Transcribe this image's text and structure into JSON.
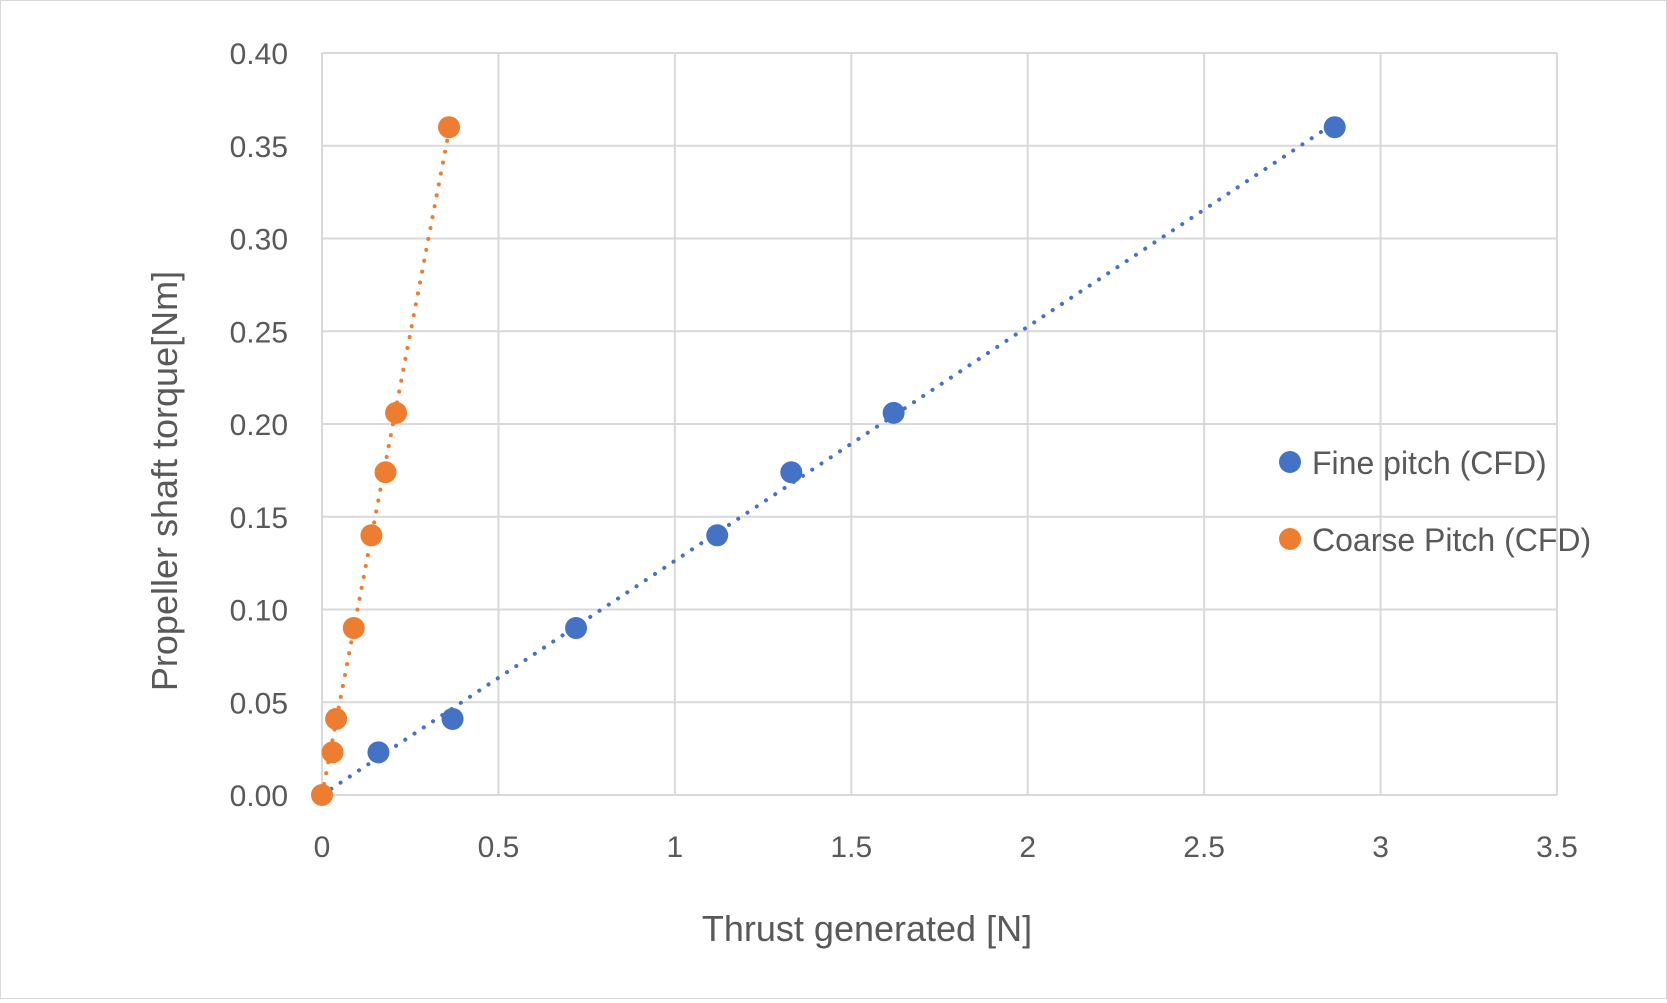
{
  "chart_data": {
    "type": "scatter",
    "xlabel": "Thrust generated [N]",
    "ylabel": "Propeller shaft torque[Nm]",
    "xlim": [
      0,
      3.5
    ],
    "ylim": [
      0,
      0.4
    ],
    "x_ticks": [
      0,
      0.5,
      1,
      1.5,
      2,
      2.5,
      3,
      3.5
    ],
    "x_tick_labels": [
      "0",
      "0.5",
      "1",
      "1.5",
      "2",
      "2.5",
      "3",
      "3.5"
    ],
    "y_ticks": [
      0,
      0.05,
      0.1,
      0.15,
      0.2,
      0.25,
      0.3,
      0.35,
      0.4
    ],
    "y_tick_labels": [
      "0.00",
      "0.05",
      "0.10",
      "0.15",
      "0.20",
      "0.25",
      "0.30",
      "0.35",
      "0.40"
    ],
    "grid": true,
    "legend_position": "right",
    "series": [
      {
        "name": "Fine pitch (CFD)",
        "color": "#4472C4",
        "trendline": "dotted-linear",
        "points": [
          {
            "x": 0.16,
            "y": 0.023
          },
          {
            "x": 0.37,
            "y": 0.041
          },
          {
            "x": 0.72,
            "y": 0.09
          },
          {
            "x": 1.12,
            "y": 0.14
          },
          {
            "x": 1.33,
            "y": 0.174
          },
          {
            "x": 1.62,
            "y": 0.206
          },
          {
            "x": 2.87,
            "y": 0.36
          }
        ]
      },
      {
        "name": "Coarse Pitch (CFD)",
        "color": "#ED7D31",
        "trendline": "dotted-linear",
        "points": [
          {
            "x": 0.0,
            "y": 0.0
          },
          {
            "x": 0.03,
            "y": 0.023
          },
          {
            "x": 0.04,
            "y": 0.041
          },
          {
            "x": 0.09,
            "y": 0.09
          },
          {
            "x": 0.14,
            "y": 0.14
          },
          {
            "x": 0.18,
            "y": 0.174
          },
          {
            "x": 0.21,
            "y": 0.206
          },
          {
            "x": 0.36,
            "y": 0.36
          }
        ]
      }
    ]
  }
}
